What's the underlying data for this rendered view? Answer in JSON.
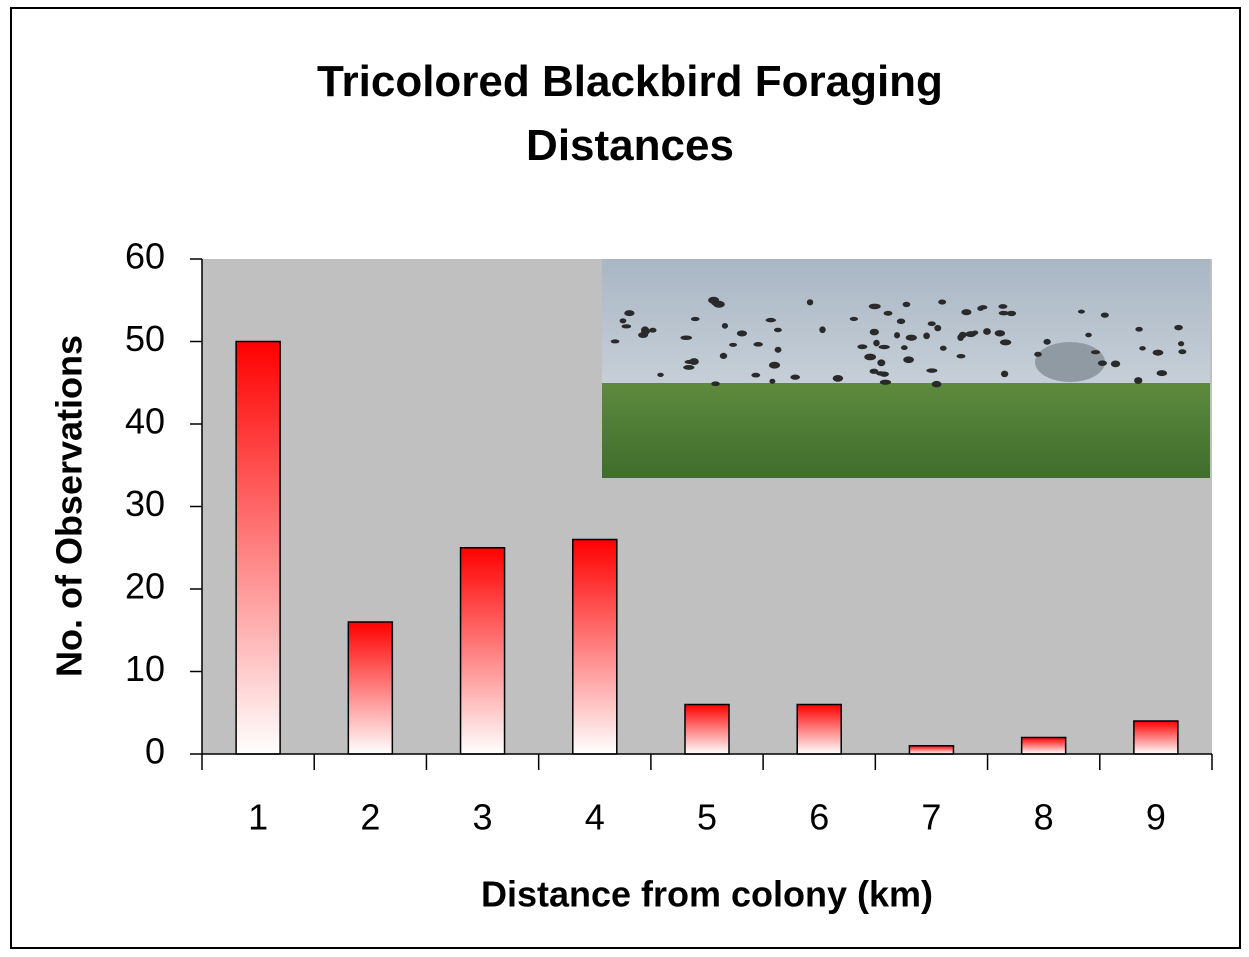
{
  "chart_data": {
    "type": "bar",
    "title": "Tricolored Blackbird Foraging Distances",
    "x_label": "Distance from colony (km)",
    "y_label": "No. of Observations",
    "categories": [
      "1",
      "2",
      "3",
      "4",
      "5",
      "6",
      "7",
      "8",
      "9"
    ],
    "values": [
      50,
      16,
      25,
      26,
      6,
      6,
      1,
      2,
      4
    ],
    "color": "#ff0000",
    "ylim": [
      0,
      60
    ],
    "yticks": [
      0,
      10,
      20,
      30,
      40,
      50,
      60
    ],
    "grid": false
  }
}
